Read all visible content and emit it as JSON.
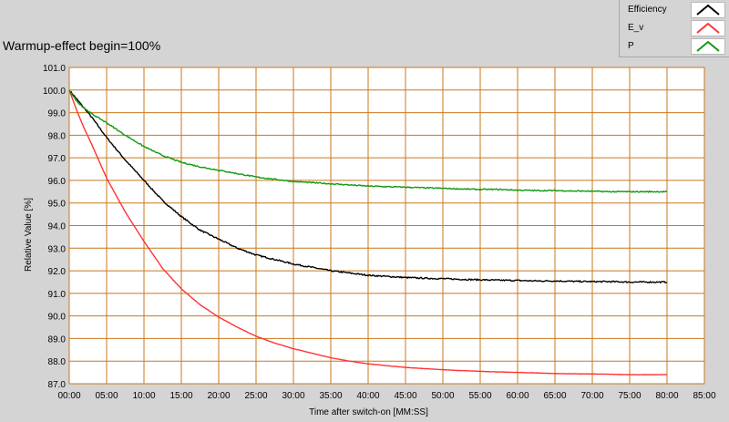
{
  "title": "Warmup-effect begin=100%",
  "legend": [
    {
      "name": "Efficiency",
      "color": "#000000"
    },
    {
      "name": "E_v",
      "color": "#ff3333"
    },
    {
      "name": "P",
      "color": "#119911"
    }
  ],
  "chart_data": {
    "type": "line",
    "xlabel": "Time after switch-on [MM:SS]",
    "ylabel": "Relative Value [%]",
    "xlim": [
      0,
      85
    ],
    "ylim": [
      87,
      101
    ],
    "x_ticks": [
      "00:00",
      "05:00",
      "10:00",
      "15:00",
      "20:00",
      "25:00",
      "30:00",
      "35:00",
      "40:00",
      "45:00",
      "50:00",
      "55:00",
      "60:00",
      "65:00",
      "70:00",
      "75:00",
      "80:00",
      "85:00"
    ],
    "y_ticks": [
      "87.0",
      "88.0",
      "89.0",
      "90.0",
      "91.0",
      "92.0",
      "93.0",
      "94.0",
      "95.0",
      "96.0",
      "97.0",
      "98.0",
      "99.0",
      "100.0",
      "101.0"
    ],
    "grid": true,
    "grid_color": "#c8781e",
    "plot_background": "#ffffff",
    "series": [
      {
        "name": "Efficiency",
        "color": "#000000",
        "x": [
          0,
          1,
          2,
          3,
          5,
          7.5,
          10,
          12.5,
          15,
          17.5,
          20,
          22.5,
          25,
          27.5,
          30,
          32.5,
          35,
          37.5,
          40,
          42.5,
          45,
          47.5,
          50,
          52.5,
          55,
          57.5,
          60,
          62.5,
          65,
          67.5,
          70,
          72.5,
          75,
          77.5,
          80
        ],
        "y": [
          100.0,
          99.6,
          99.2,
          98.8,
          97.9,
          96.9,
          96.0,
          95.1,
          94.4,
          93.8,
          93.4,
          93.0,
          92.7,
          92.5,
          92.3,
          92.15,
          92.0,
          91.9,
          91.8,
          91.75,
          91.7,
          91.67,
          91.65,
          91.62,
          91.6,
          91.58,
          91.57,
          91.55,
          91.55,
          91.53,
          91.52,
          91.52,
          91.5,
          91.5,
          91.5
        ]
      },
      {
        "name": "E_v",
        "color": "#ff3333",
        "x": [
          0,
          1,
          2,
          3,
          5,
          7.5,
          10,
          12.5,
          15,
          17.5,
          20,
          22.5,
          25,
          27.5,
          30,
          32.5,
          35,
          37.5,
          40,
          42.5,
          45,
          47.5,
          50,
          52.5,
          55,
          57.5,
          60,
          62.5,
          65,
          67.5,
          70,
          72.5,
          75,
          77.5,
          80
        ],
        "y": [
          100.0,
          99.1,
          98.3,
          97.6,
          96.1,
          94.6,
          93.3,
          92.1,
          91.2,
          90.5,
          89.95,
          89.5,
          89.1,
          88.8,
          88.55,
          88.35,
          88.15,
          88.0,
          87.88,
          87.8,
          87.72,
          87.67,
          87.62,
          87.58,
          87.55,
          87.52,
          87.5,
          87.48,
          87.45,
          87.44,
          87.43,
          87.42,
          87.4,
          87.4,
          87.4
        ]
      },
      {
        "name": "P",
        "color": "#119911",
        "x": [
          0,
          1,
          2,
          3,
          5,
          7.5,
          10,
          12.5,
          15,
          17.5,
          20,
          22.5,
          25,
          27.5,
          30,
          32.5,
          35,
          37.5,
          40,
          42.5,
          45,
          47.5,
          50,
          52.5,
          55,
          57.5,
          60,
          62.5,
          65,
          67.5,
          70,
          72.5,
          75,
          77.5,
          80
        ],
        "y": [
          100.0,
          99.5,
          99.2,
          98.95,
          98.55,
          98.0,
          97.5,
          97.1,
          96.8,
          96.6,
          96.45,
          96.3,
          96.15,
          96.05,
          95.95,
          95.9,
          95.85,
          95.8,
          95.75,
          95.72,
          95.7,
          95.67,
          95.65,
          95.62,
          95.6,
          95.6,
          95.57,
          95.55,
          95.55,
          95.53,
          95.52,
          95.5,
          95.5,
          95.5,
          95.5
        ]
      }
    ]
  }
}
